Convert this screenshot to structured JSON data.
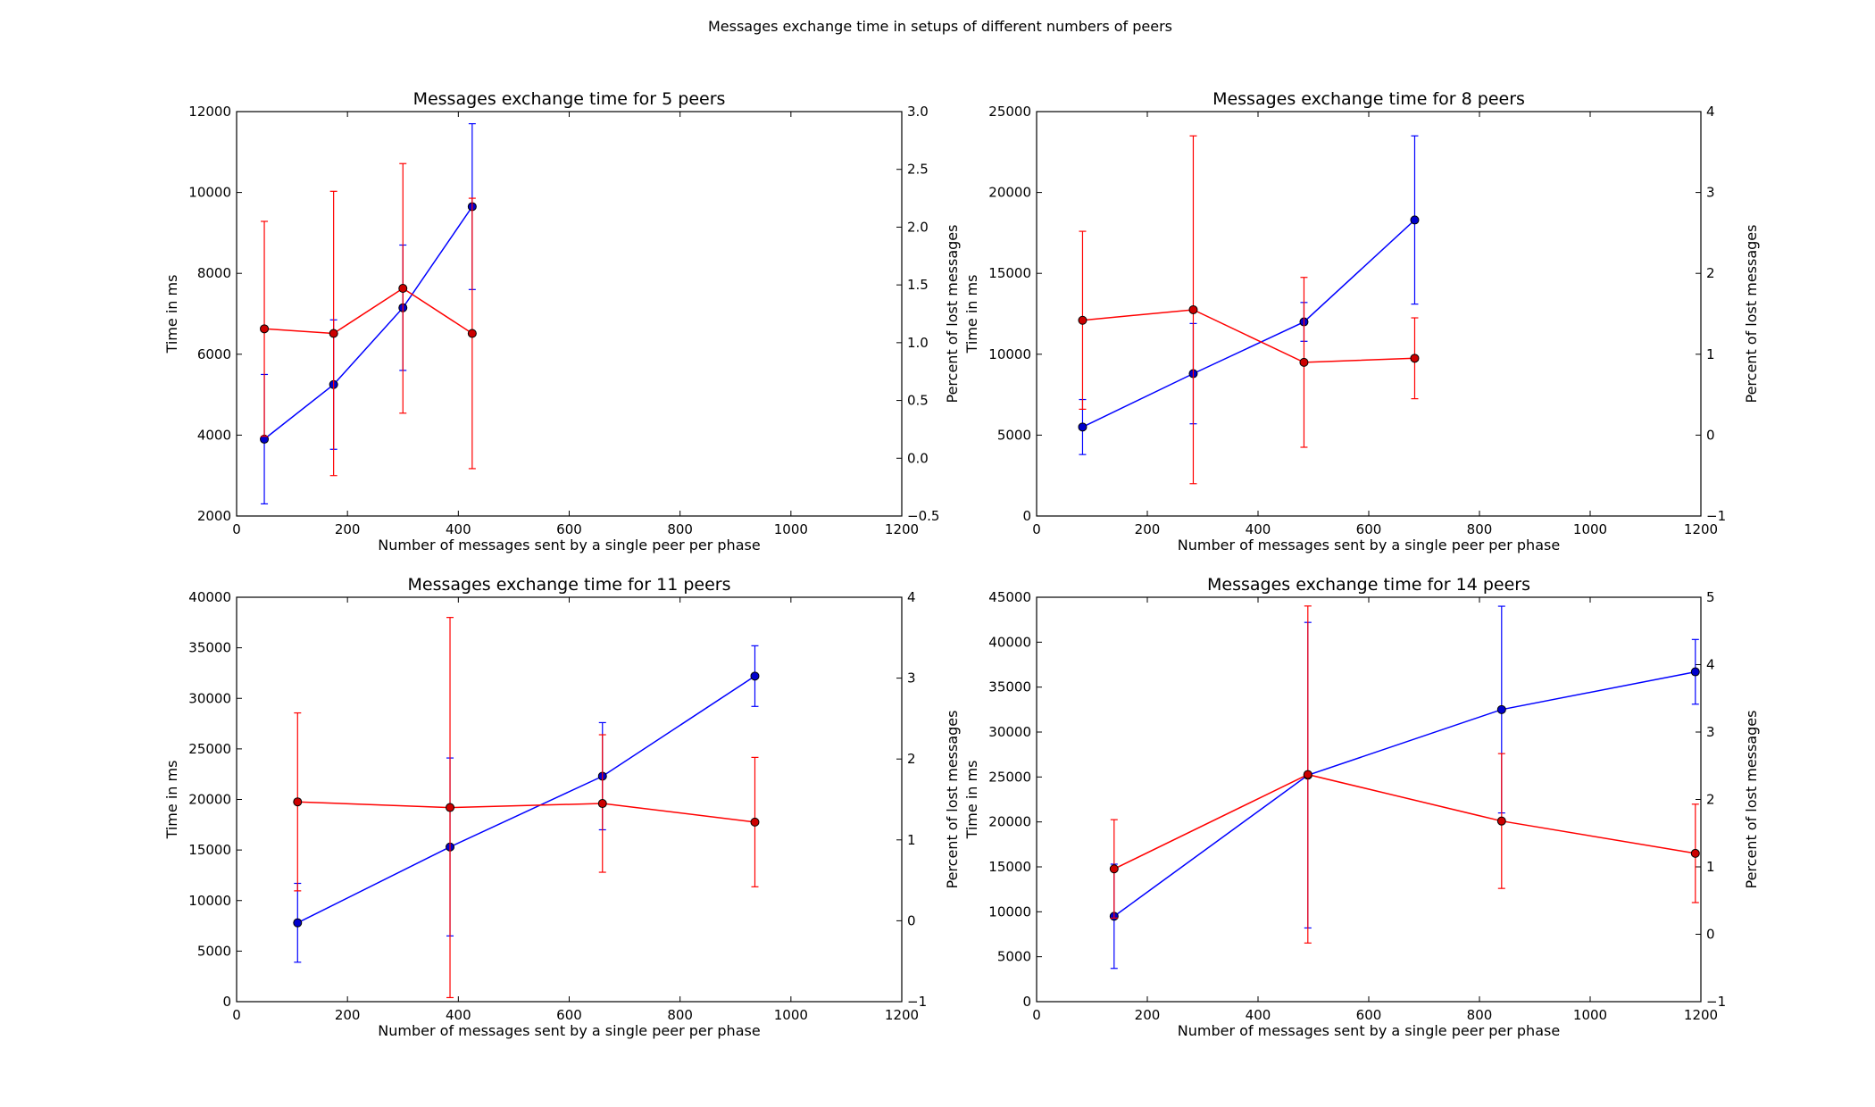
{
  "suptitle": "Messages exchange time in setups of different numbers of peers",
  "chart_data": [
    {
      "type": "line",
      "title": "Messages exchange time for 5 peers",
      "xlabel": "Number of messages sent by a single peer per phase",
      "ylabel": "Time in ms",
      "y2label": "Percent of lost messages",
      "xlim": [
        0,
        1200
      ],
      "ylim": [
        2000,
        12000
      ],
      "y2lim": [
        -0.5,
        3.0
      ],
      "xticks": [
        "0",
        "200",
        "400",
        "600",
        "800",
        "1000",
        "1200"
      ],
      "yticks": [
        "2000",
        "4000",
        "6000",
        "8000",
        "10000",
        "12000"
      ],
      "y2ticks": [
        "−0.5",
        "0.0",
        "0.5",
        "1.0",
        "1.5",
        "2.0",
        "2.5",
        "3.0"
      ],
      "grid": false,
      "series": [
        {
          "axis": "left",
          "color": "#0000ff",
          "x": [
            50,
            175,
            300,
            425
          ],
          "y": [
            3900,
            5250,
            7150,
            9650
          ],
          "err": [
            1600,
            1600,
            1550,
            2050
          ]
        },
        {
          "axis": "right",
          "color": "#ff0000",
          "x": [
            50,
            175,
            300,
            425
          ],
          "y": [
            1.12,
            1.08,
            1.47,
            1.08
          ],
          "err": [
            0.93,
            1.23,
            1.08,
            1.17
          ]
        }
      ]
    },
    {
      "type": "line",
      "title": "Messages exchange time for 8 peers",
      "xlabel": "Number of messages sent by a single peer per phase",
      "ylabel": "Time in ms",
      "y2label": "Percent of lost messages",
      "xlim": [
        0,
        1200
      ],
      "ylim": [
        0,
        25000
      ],
      "y2lim": [
        -1,
        4
      ],
      "xticks": [
        "0",
        "200",
        "400",
        "600",
        "800",
        "1000",
        "1200"
      ],
      "yticks": [
        "0",
        "5000",
        "10000",
        "15000",
        "20000",
        "25000"
      ],
      "y2ticks": [
        "−1",
        "0",
        "1",
        "2",
        "3",
        "4"
      ],
      "grid": false,
      "series": [
        {
          "axis": "left",
          "color": "#0000ff",
          "x": [
            83,
            283,
            483,
            683
          ],
          "y": [
            5500,
            8800,
            12000,
            18300
          ],
          "err": [
            1700,
            3100,
            1200,
            5200
          ]
        },
        {
          "axis": "right",
          "color": "#ff0000",
          "x": [
            83,
            283,
            483,
            683
          ],
          "y": [
            1.42,
            1.55,
            0.9,
            0.95
          ],
          "err": [
            1.1,
            2.15,
            1.05,
            0.5
          ]
        }
      ]
    },
    {
      "type": "line",
      "title": "Messages exchange time for 11 peers",
      "xlabel": "Number of messages sent by a single peer per phase",
      "ylabel": "Time in ms",
      "y2label": "Percent of lost messages",
      "xlim": [
        0,
        1200
      ],
      "ylim": [
        0,
        40000
      ],
      "y2lim": [
        -1,
        4
      ],
      "xticks": [
        "0",
        "200",
        "400",
        "600",
        "800",
        "1000",
        "1200"
      ],
      "yticks": [
        "0",
        "5000",
        "10000",
        "15000",
        "20000",
        "25000",
        "30000",
        "35000",
        "40000"
      ],
      "y2ticks": [
        "−1",
        "0",
        "1",
        "2",
        "3",
        "4"
      ],
      "grid": false,
      "series": [
        {
          "axis": "left",
          "color": "#0000ff",
          "x": [
            110,
            385,
            660,
            935
          ],
          "y": [
            7800,
            15300,
            22300,
            32200
          ],
          "err": [
            3900,
            8800,
            5300,
            3000
          ]
        },
        {
          "axis": "right",
          "color": "#ff0000",
          "x": [
            110,
            385,
            660,
            935
          ],
          "y": [
            1.47,
            1.4,
            1.45,
            1.22
          ],
          "err": [
            1.1,
            2.35,
            0.85,
            0.8
          ]
        }
      ]
    },
    {
      "type": "line",
      "title": "Messages exchange time for 14 peers",
      "xlabel": "Number of messages sent by a single peer per phase",
      "ylabel": "Time in ms",
      "y2label": "Percent of lost messages",
      "xlim": [
        0,
        1200
      ],
      "ylim": [
        0,
        45000
      ],
      "y2lim": [
        -1,
        5
      ],
      "xticks": [
        "0",
        "200",
        "400",
        "600",
        "800",
        "1000",
        "1200"
      ],
      "yticks": [
        "0",
        "5000",
        "10000",
        "15000",
        "20000",
        "25000",
        "30000",
        "35000",
        "40000",
        "45000"
      ],
      "y2ticks": [
        "−1",
        "0",
        "1",
        "2",
        "3",
        "4",
        "5"
      ],
      "grid": false,
      "series": [
        {
          "axis": "left",
          "color": "#0000ff",
          "x": [
            140,
            490,
            840,
            1190
          ],
          "y": [
            9500,
            25200,
            32500,
            36700
          ],
          "err": [
            5800,
            17000,
            11500,
            3600
          ]
        },
        {
          "axis": "right",
          "color": "#ff0000",
          "x": [
            140,
            490,
            840,
            1190
          ],
          "y": [
            0.97,
            2.37,
            1.68,
            1.2
          ],
          "err": [
            0.73,
            2.5,
            1.0,
            0.73
          ]
        }
      ]
    }
  ]
}
